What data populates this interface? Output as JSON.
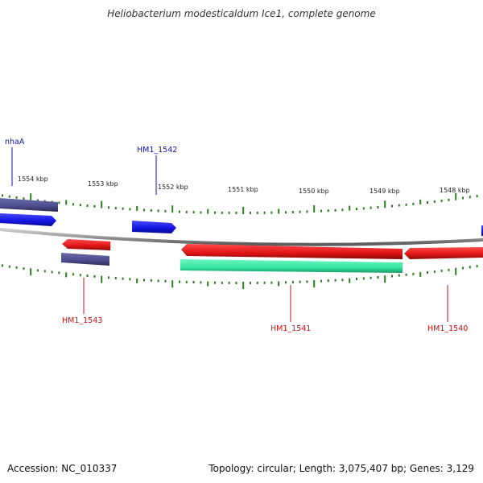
{
  "title": "Heliobacterium modesticaldum Ice1, complete genome",
  "footer": {
    "accession": "Accession: NC_010337",
    "summary": "Topology: circular; Length: 3,075,407 bp; Genes: 3,129"
  },
  "colors": {
    "backbone": "#8a8a8a",
    "tick": "#2a7d1c",
    "forward_gene": "#1a1ae0",
    "reverse_gene": "#e01414",
    "other_feature": "#4b4c8c",
    "rna_track": "#33e8a0",
    "forward_label": "#1212b0",
    "reverse_label": "#c41010"
  },
  "kbp_labels": [
    "1554 kbp",
    "1553 kbp",
    "1552 kbp",
    "1551 kbp",
    "1550 kbp",
    "1549 kbp",
    "1548 kbp"
  ],
  "gene_labels": {
    "nhaA": "nhaA",
    "hm1_1542": "HM1_1542",
    "hm1_1543": "HM1_1543",
    "hm1_1541": "HM1_1541",
    "hm1_1540": "HM1_1540"
  }
}
